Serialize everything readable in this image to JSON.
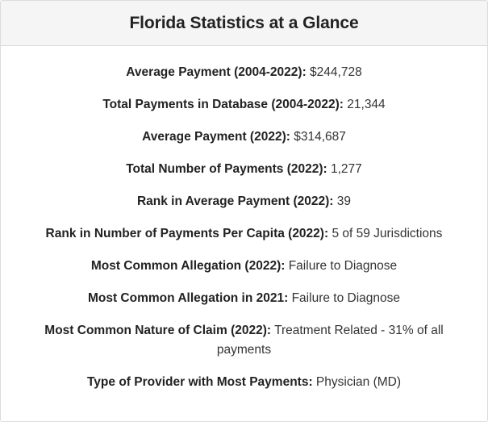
{
  "title": "Florida Statistics at a Glance",
  "stats": [
    {
      "label": "Average Payment (2004-2022):",
      "value": "$244,728"
    },
    {
      "label": "Total Payments in Database (2004-2022):",
      "value": "21,344"
    },
    {
      "label": "Average Payment (2022):",
      "value": "$314,687"
    },
    {
      "label": "Total Number of Payments (2022):",
      "value": "1,277"
    },
    {
      "label": "Rank in Average Payment (2022):",
      "value": "39"
    },
    {
      "label": "Rank in Number of Payments Per Capita (2022):",
      "value": "5 of 59 Jurisdictions"
    },
    {
      "label": "Most Common Allegation (2022):",
      "value": "Failure to Diagnose"
    },
    {
      "label": "Most Common Allegation in 2021:",
      "value": "Failure to Diagnose"
    },
    {
      "label": "Most Common Nature of Claim (2022):",
      "value": "Treatment Related - 31% of all payments"
    },
    {
      "label": "Type of Provider with Most Payments:",
      "value": "Physician (MD)"
    }
  ]
}
